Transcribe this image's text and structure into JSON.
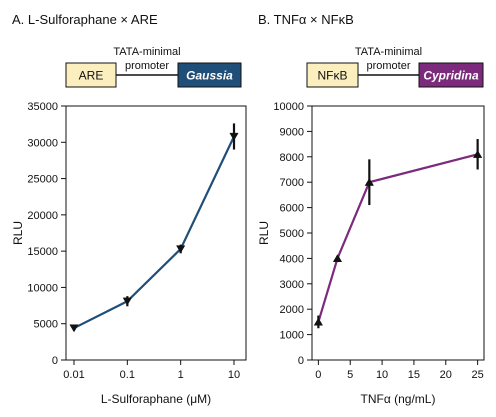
{
  "colors": {
    "panel_a_series": "#1f4e79",
    "panel_b_series": "#7b2a7c",
    "element_box_fill": "#fbefc0",
    "marker": "#111111"
  },
  "panels": [
    {
      "title": "A. L-Sulforaphane × ARE",
      "construct": {
        "element_label": "ARE",
        "promoter_label": "TATA-minimal promoter",
        "promoter_line1": "TATA-minimal",
        "promoter_line2": "promoter",
        "reporter_label": "Gaussia"
      }
    },
    {
      "title": "B. TNFα × NFκB",
      "construct": {
        "element_label": "NFκB",
        "promoter_label": "TATA-minimal promoter",
        "promoter_line1": "TATA-minimal",
        "promoter_line2": "promoter",
        "reporter_label": "Cypridina"
      }
    }
  ],
  "chart_data": [
    {
      "type": "line",
      "title": "A. L-Sulforaphane × ARE",
      "xlabel": "L-Sulforaphane (μM)",
      "ylabel": "RLU",
      "x_scale": "log",
      "xlim": [
        0.01,
        10
      ],
      "ylim": [
        0,
        35000
      ],
      "x_ticks": [
        0.01,
        0.1,
        1,
        10
      ],
      "x_tick_labels": [
        "0.01",
        "0.1",
        "1",
        "10"
      ],
      "y_ticks": [
        0,
        5000,
        10000,
        15000,
        20000,
        25000,
        30000,
        35000
      ],
      "y_tick_labels": [
        "0",
        "5000",
        "10000",
        "15000",
        "20000",
        "25000",
        "30000",
        "35000"
      ],
      "marker": "triangle-down",
      "grid": false,
      "series": [
        {
          "x": [
            0.01,
            0.1,
            1,
            10
          ],
          "y": [
            4400,
            8100,
            15300,
            30800
          ],
          "error": [
            300,
            700,
            600,
            1800
          ]
        }
      ]
    },
    {
      "type": "line",
      "title": "B. TNFα × NFκB",
      "xlabel": "TNFα (ng/mL)",
      "ylabel": "RLU",
      "x_scale": "linear",
      "xlim": [
        -1,
        26
      ],
      "ylim": [
        0,
        10000
      ],
      "x_ticks": [
        0,
        5,
        10,
        15,
        20,
        25
      ],
      "x_tick_labels": [
        "0",
        "5",
        "10",
        "15",
        "20",
        "25"
      ],
      "y_ticks": [
        0,
        1000,
        2000,
        3000,
        4000,
        5000,
        6000,
        7000,
        8000,
        9000,
        10000
      ],
      "y_tick_labels": [
        "0",
        "1000",
        "2000",
        "3000",
        "4000",
        "5000",
        "6000",
        "7000",
        "8000",
        "9000",
        "10000"
      ],
      "marker": "triangle-up",
      "grid": false,
      "series": [
        {
          "x": [
            0,
            3,
            8,
            25
          ],
          "y": [
            1500,
            4000,
            7000,
            8100
          ],
          "error": [
            250,
            100,
            900,
            600
          ]
        }
      ]
    }
  ]
}
